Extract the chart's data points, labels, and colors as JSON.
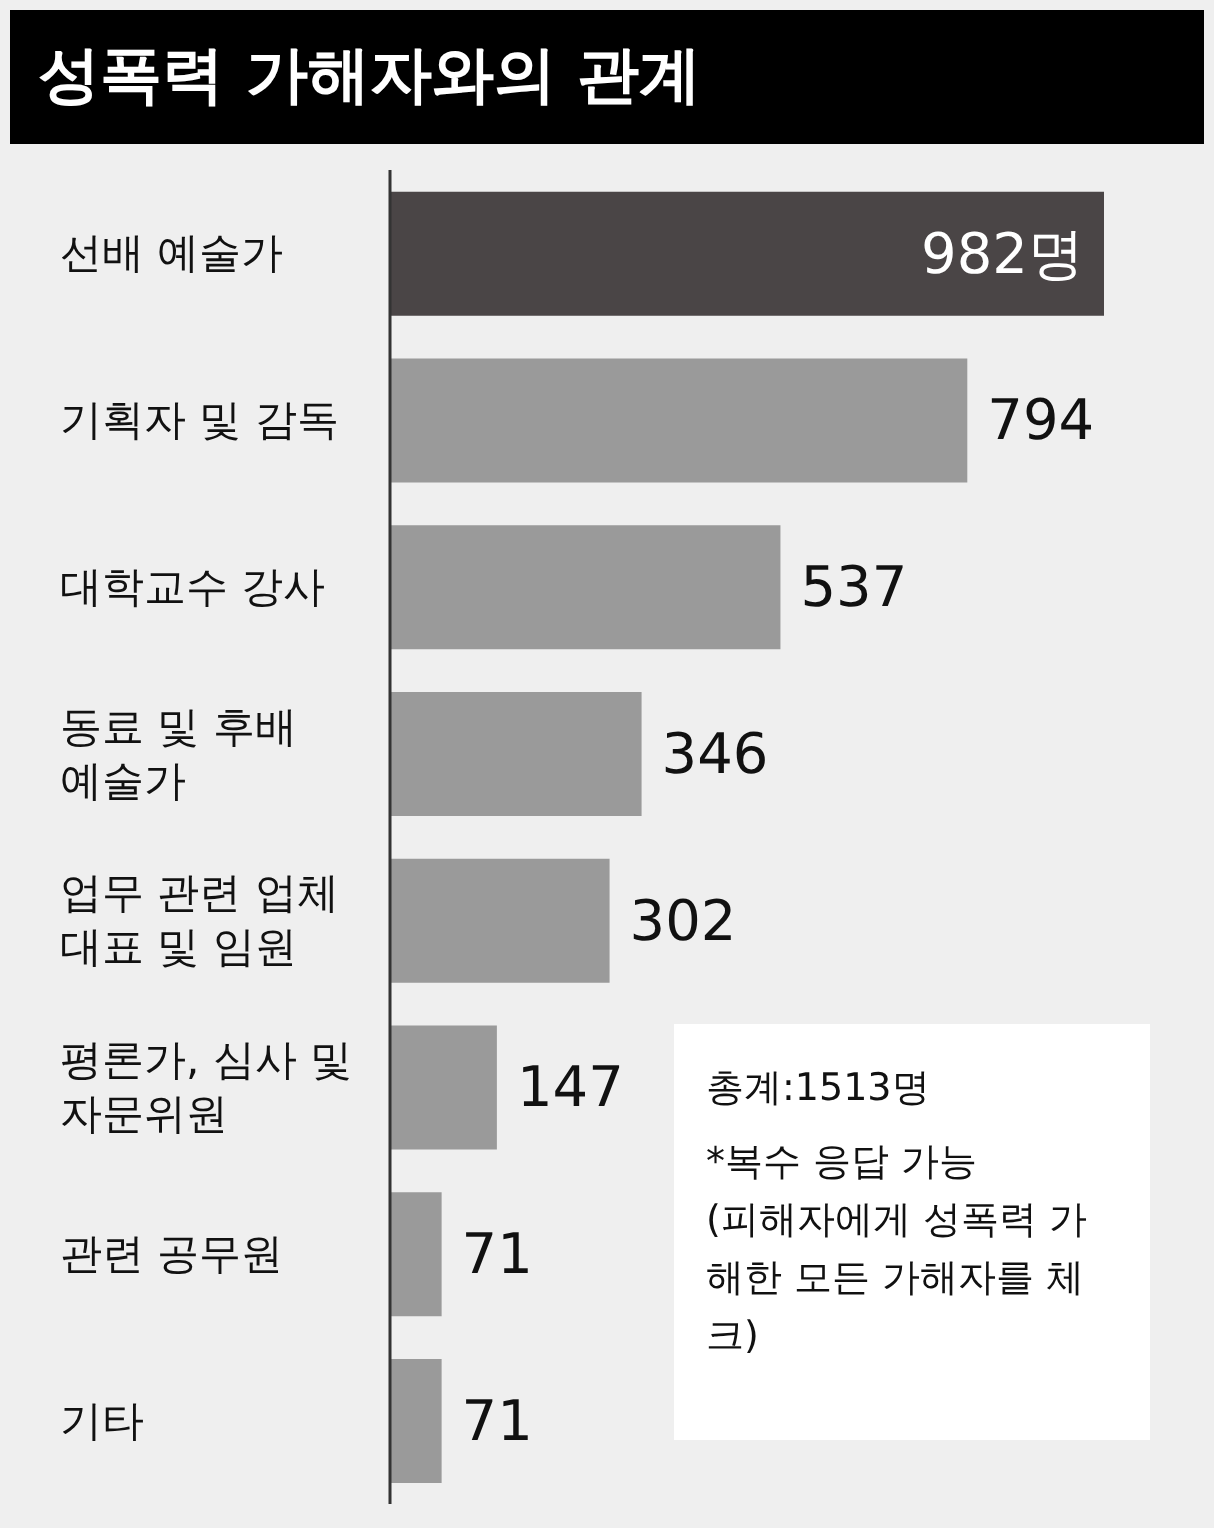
{
  "chart_data": {
    "type": "bar",
    "orientation": "horizontal",
    "title": "성폭력 가해자와의 관계",
    "categories": [
      "선배 예술가",
      "기획자 및 감독",
      "대학교수 강사",
      "동료 및 후배 예술가",
      "업무 관련 업체 대표 및 임원",
      "평론가, 심사 및 자문위원",
      "관련 공무원",
      "기타"
    ],
    "values": [
      982,
      794,
      537,
      346,
      302,
      147,
      71,
      71
    ],
    "value_labels": [
      "982명",
      "794",
      "537",
      "346",
      "302",
      "147",
      "71",
      "71"
    ],
    "colors": [
      "#4a4546",
      "#9a9a9a",
      "#9a9a9a",
      "#9a9a9a",
      "#9a9a9a",
      "#9a9a9a",
      "#9a9a9a",
      "#9a9a9a"
    ],
    "annotations": [
      "총계:1513명",
      "*복수 응답 가능",
      "(피해자에게 성폭력 가해한 모든 가해자를 체크)"
    ]
  }
}
